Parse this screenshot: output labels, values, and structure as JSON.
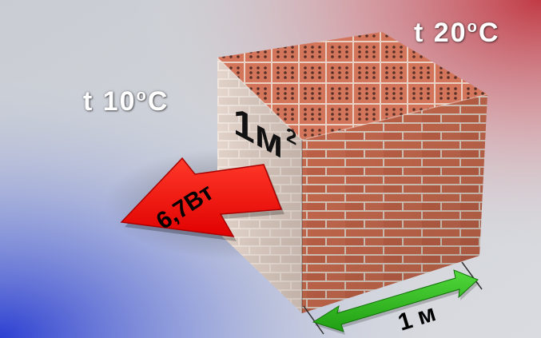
{
  "labels": {
    "temp_warm": "t 20",
    "temp_warm_deg": "o",
    "temp_warm_unit": "C",
    "temp_cold": "t 10",
    "temp_cold_deg": "o",
    "temp_cold_unit": "C",
    "area": "1м",
    "area_exp": "2",
    "heat_flow": "6,7Вт",
    "length": "1 м"
  },
  "colors": {
    "warm_side": "#c9505a",
    "cold_side": "#3a4fd0",
    "arrow_heat": "#ff1010",
    "arrow_length": "#22b014",
    "brick": "#c4654a",
    "mortar": "#dcc9bd"
  },
  "icons": {
    "heat_arrow": "heat-flow-arrow-icon",
    "length_arrow": "double-arrow-icon"
  }
}
